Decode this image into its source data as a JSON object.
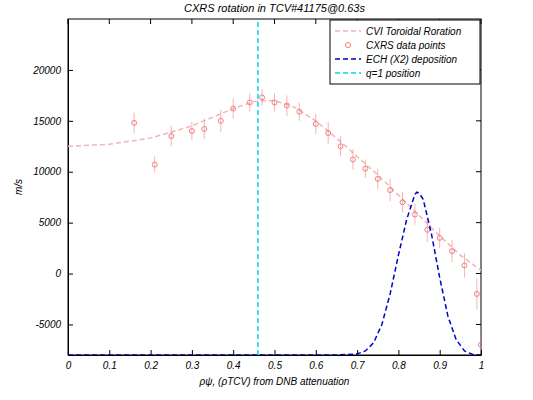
{
  "chart_data": {
    "type": "line",
    "title": "CXRS rotation in TCV#41175@0.63s",
    "x_label": "ρψ, (ρTCV) from DNB attenuation",
    "y_label": "m/s",
    "xlim": [
      0,
      1
    ],
    "xticks": [
      0,
      0.1,
      0.2,
      0.3,
      0.4,
      0.5,
      0.6,
      0.7,
      0.8,
      0.9,
      1
    ],
    "ylim": [
      -8000,
      25000
    ],
    "yticks": [
      -5000,
      0,
      5000,
      10000,
      15000,
      20000
    ],
    "grid": false,
    "legend": "upper right",
    "series": [
      {
        "name": "CVI Toroidal Roration",
        "type": "line",
        "line_style": "dashed",
        "color": "#f2b6b6",
        "x": [
          0,
          0.1,
          0.2,
          0.3,
          0.4,
          0.45,
          0.5,
          0.55,
          0.6,
          0.65,
          0.7,
          0.75,
          0.8,
          0.85,
          0.9,
          0.95,
          1.0
        ],
        "values": [
          12500,
          12700,
          13300,
          14500,
          16200,
          16900,
          17000,
          16300,
          15000,
          13300,
          11500,
          9700,
          7700,
          5700,
          3700,
          1800,
          300
        ]
      },
      {
        "name": "CXRS data points",
        "type": "scatter",
        "marker": "circle",
        "color": "#f08080",
        "x": [
          0.16,
          0.21,
          0.25,
          0.3,
          0.33,
          0.37,
          0.4,
          0.44,
          0.47,
          0.5,
          0.53,
          0.56,
          0.6,
          0.63,
          0.66,
          0.69,
          0.72,
          0.75,
          0.78,
          0.81,
          0.84,
          0.87,
          0.9,
          0.93,
          0.96,
          0.99,
          1.0
        ],
        "values": [
          14800,
          10700,
          13500,
          14000,
          14200,
          15000,
          16200,
          16800,
          17300,
          16800,
          16500,
          15900,
          14700,
          13800,
          12500,
          11200,
          10300,
          9300,
          8200,
          7000,
          5800,
          4300,
          3500,
          2200,
          800,
          -2000,
          -7000
        ],
        "errors": [
          1000,
          800,
          1000,
          900,
          1000,
          1100,
          1000,
          900,
          800,
          900,
          1000,
          900,
          1000,
          1100,
          1000,
          1000,
          900,
          1000,
          1100,
          1000,
          1000,
          1200,
          1000,
          1100,
          1200,
          1500,
          1800
        ]
      },
      {
        "name": "ECH (X2) deposition",
        "type": "line",
        "line_style": "dashed",
        "color": "#0000cc",
        "x": [
          0,
          0.1,
          0.2,
          0.3,
          0.4,
          0.5,
          0.6,
          0.65,
          0.7,
          0.72,
          0.74,
          0.76,
          0.78,
          0.8,
          0.82,
          0.84,
          0.845,
          0.85,
          0.86,
          0.88,
          0.9,
          0.92,
          0.94,
          0.96,
          0.98,
          1.0
        ],
        "values": [
          -8000,
          -8000,
          -8000,
          -8000,
          -8000,
          -8000,
          -8000,
          -8000,
          -7900,
          -7600,
          -6800,
          -5000,
          -2000,
          1800,
          5300,
          7800,
          8000,
          7900,
          7300,
          3900,
          -400,
          -4200,
          -6500,
          -7600,
          -7950,
          -8000
        ]
      },
      {
        "name": "q=1 position",
        "type": "line",
        "line_style": "dashed",
        "color": "#00d8e8",
        "x": [
          0.46,
          0.46
        ],
        "values": [
          -8000,
          25000
        ]
      }
    ]
  }
}
